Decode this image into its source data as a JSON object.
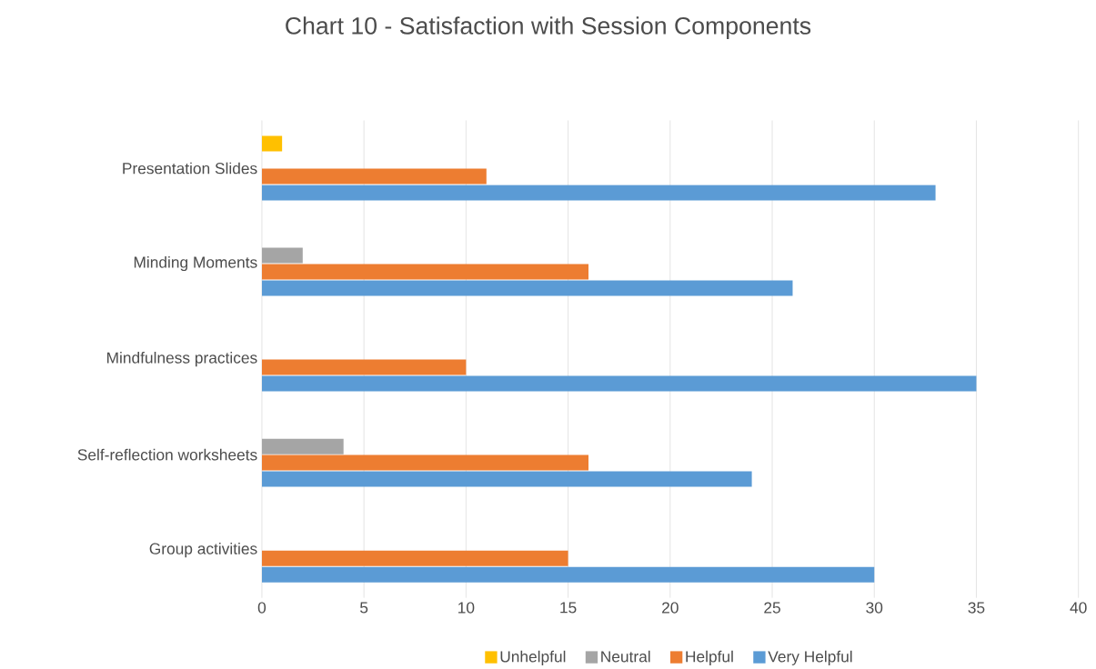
{
  "chart_data": {
    "type": "bar",
    "orientation": "horizontal",
    "title": "Chart 10 - Satisfaction with Session Components",
    "categories": [
      "Presentation Slides",
      "Minding Moments",
      "Mindfulness practices",
      "Self-reflection worksheets",
      "Group activities"
    ],
    "series": [
      {
        "name": "Unhelpful",
        "color": "#ffc000",
        "values": [
          1,
          0,
          0,
          0,
          0
        ]
      },
      {
        "name": "Neutral",
        "color": "#a5a5a5",
        "values": [
          0,
          2,
          0,
          4,
          0
        ]
      },
      {
        "name": "Helpful",
        "color": "#ed7d31",
        "values": [
          11,
          16,
          10,
          16,
          15
        ]
      },
      {
        "name": "Very Helpful",
        "color": "#5b9bd5",
        "values": [
          33,
          26,
          35,
          24,
          30
        ]
      }
    ],
    "xlim": [
      0,
      40
    ],
    "xticks": [
      0,
      5,
      10,
      15,
      20,
      25,
      30,
      35,
      40
    ],
    "grid": "x",
    "legend": "bottom"
  }
}
